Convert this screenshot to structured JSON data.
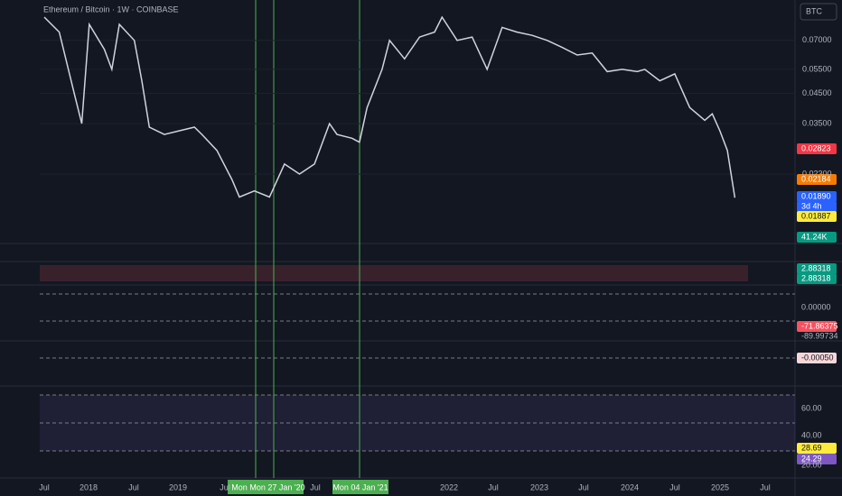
{
  "header": {
    "title": "Ethereum / Bitcoin · 1W · COINBASE",
    "currency": "BTC"
  },
  "chart_data": {
    "type": "line",
    "log_scale": true,
    "color": "#d1d4dc",
    "x": [
      "2017-07",
      "2017-09",
      "2017-11",
      "2017-12",
      "2018-01",
      "2018-03",
      "2018-04",
      "2018-05",
      "2018-07",
      "2018-08",
      "2018-09",
      "2018-11",
      "2019-01",
      "2019-03",
      "2019-04",
      "2019-06",
      "2019-08",
      "2019-09",
      "2019-11",
      "2020-01",
      "2020-03",
      "2020-05",
      "2020-07",
      "2020-09",
      "2020-10",
      "2020-12",
      "2021-01",
      "2021-02",
      "2021-04",
      "2021-05",
      "2021-07",
      "2021-09",
      "2021-11",
      "2021-12",
      "2022-02",
      "2022-04",
      "2022-06",
      "2022-08",
      "2022-10",
      "2022-12",
      "2023-02",
      "2023-04",
      "2023-06",
      "2023-08",
      "2023-10",
      "2023-12",
      "2024-02",
      "2024-03",
      "2024-05",
      "2024-07",
      "2024-09",
      "2024-11",
      "2024-12",
      "2025-01",
      "2025-02",
      "2025-03"
    ],
    "values": [
      0.085,
      0.075,
      0.045,
      0.035,
      0.08,
      0.065,
      0.055,
      0.08,
      0.07,
      0.05,
      0.034,
      0.032,
      0.033,
      0.034,
      0.032,
      0.028,
      0.022,
      0.019,
      0.02,
      0.019,
      0.025,
      0.023,
      0.025,
      0.035,
      0.032,
      0.031,
      0.03,
      0.04,
      0.055,
      0.07,
      0.06,
      0.072,
      0.075,
      0.085,
      0.07,
      0.072,
      0.055,
      0.078,
      0.075,
      0.073,
      0.07,
      0.066,
      0.062,
      0.063,
      0.054,
      0.055,
      0.054,
      0.055,
      0.05,
      0.053,
      0.04,
      0.036,
      0.038,
      0.033,
      0.028,
      0.0189
    ],
    "ylim": [
      0.0131,
      0.098
    ],
    "yticks": [
      {
        "value": 0.07,
        "label": "0.07000"
      },
      {
        "value": 0.055,
        "label": "0.05500"
      },
      {
        "value": 0.045,
        "label": "0.04500"
      },
      {
        "value": 0.035,
        "label": "0.03500"
      },
      {
        "value": 0.023,
        "label": "0.02300"
      }
    ]
  },
  "price_badges": [
    "0.02823",
    "0.02184",
    "0.01890",
    "3d 4h",
    "0.01887",
    "41.24K",
    "2.88318",
    "2.88318",
    "0.00000",
    "-71.86375",
    "-89.99734",
    "-0.00050",
    "60.00",
    "40.00",
    "28.69",
    "24.29",
    "20.00"
  ],
  "time_axis": [
    "Jul",
    "2018",
    "Jul",
    "2019",
    "Jul",
    "Jul",
    "2022",
    "Jul",
    "2023",
    "Jul",
    "2024",
    "Jul",
    "2025",
    "Jul"
  ],
  "cursor_labels": [
    "Mon",
    "Mon 27 Jan '20",
    "Mon 04 Jan '21"
  ]
}
